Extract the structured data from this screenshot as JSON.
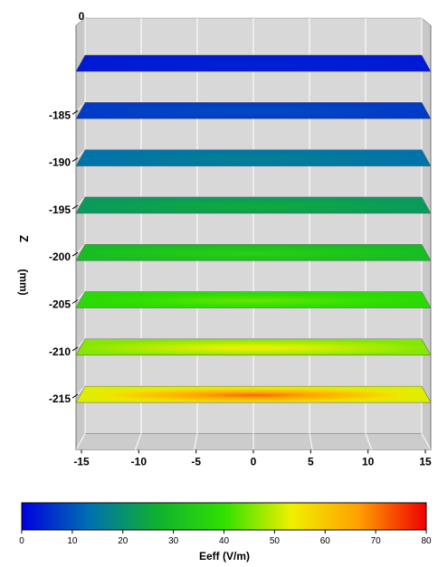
{
  "chart_data": {
    "type": "heatmap",
    "title": "",
    "z_axis": {
      "label": "Z",
      "unit_label": "(mm)",
      "ticks": [
        "-185",
        "-190",
        "-195",
        "-200",
        "-205",
        "-210",
        "-215"
      ],
      "top_tick": "0"
    },
    "x_axis": {
      "ticks": [
        "-15",
        "-10",
        "-5",
        "0",
        "5",
        "10",
        "15"
      ],
      "range": [
        -15,
        15
      ]
    },
    "colorbar": {
      "label": "Eeff (V/m)",
      "ticks": [
        "0",
        "10",
        "20",
        "30",
        "40",
        "50",
        "60",
        "70",
        "80"
      ],
      "range": [
        0,
        80
      ],
      "colors": [
        "#0000e0",
        "#0070b0",
        "#10b030",
        "#30e000",
        "#f0f000",
        "#ffa000",
        "#f00000"
      ]
    },
    "slices": [
      {
        "z": -180,
        "edge_value": 3,
        "center_value": 4
      },
      {
        "z": -185,
        "edge_value": 7,
        "center_value": 9
      },
      {
        "z": -190,
        "edge_value": 14,
        "center_value": 17
      },
      {
        "z": -195,
        "edge_value": 22,
        "center_value": 26
      },
      {
        "z": -200,
        "edge_value": 30,
        "center_value": 36
      },
      {
        "z": -205,
        "edge_value": 38,
        "center_value": 44
      },
      {
        "z": -210,
        "edge_value": 46,
        "center_value": 54
      },
      {
        "z": -215,
        "edge_value": 52,
        "center_value": 72
      }
    ]
  }
}
